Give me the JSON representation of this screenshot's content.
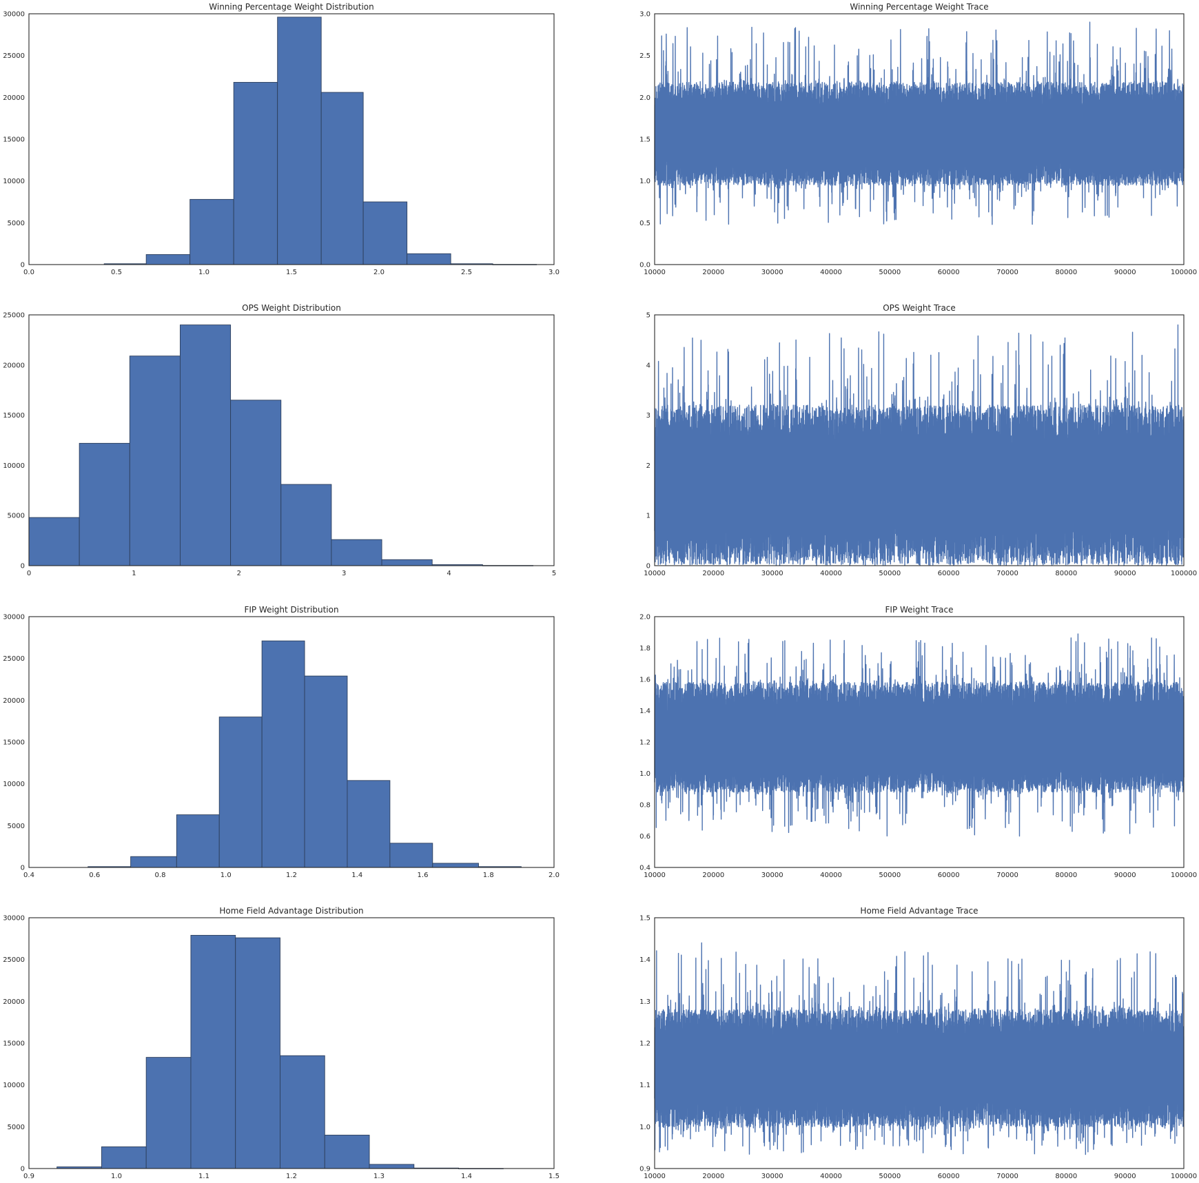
{
  "figure": {
    "background": "#ffffff",
    "bar_color": "#4c72b0",
    "bar_edge": "#2d3f5c",
    "line_color": "#4c72b0"
  },
  "chart_data": [
    {
      "type": "bar",
      "title": "Winning Percentage Weight Distribution",
      "xlim": [
        0.0,
        3.0
      ],
      "ylim": [
        0,
        30000
      ],
      "xticks": [
        0.0,
        0.5,
        1.0,
        1.5,
        2.0,
        2.5,
        3.0
      ],
      "xtick_labels": [
        "0.0",
        "0.5",
        "1.0",
        "1.5",
        "2.0",
        "2.5",
        "3.0"
      ],
      "yticks": [
        0,
        5000,
        10000,
        15000,
        20000,
        25000,
        30000
      ],
      "ytick_labels": [
        "0",
        "5000",
        "10000",
        "15000",
        "20000",
        "25000",
        "30000"
      ],
      "bin_edges": [
        0.43,
        0.67,
        0.92,
        1.17,
        1.42,
        1.67,
        1.91,
        2.16,
        2.41,
        2.65,
        2.9
      ],
      "values": [
        100,
        1200,
        7800,
        21800,
        29600,
        20600,
        7500,
        1300,
        100,
        20
      ]
    },
    {
      "type": "line",
      "title": "Winning Percentage Weight Trace",
      "xlim": [
        10000,
        100000
      ],
      "ylim": [
        0.0,
        3.0
      ],
      "xticks": [
        10000,
        20000,
        30000,
        40000,
        50000,
        60000,
        70000,
        80000,
        90000,
        100000
      ],
      "xtick_labels": [
        "10000",
        "20000",
        "30000",
        "40000",
        "50000",
        "60000",
        "70000",
        "80000",
        "90000",
        "100000"
      ],
      "yticks": [
        0.0,
        0.5,
        1.0,
        1.5,
        2.0,
        2.5,
        3.0
      ],
      "ytick_labels": [
        "0.0",
        "0.5",
        "1.0",
        "1.5",
        "2.0",
        "2.5",
        "3.0"
      ],
      "trace": {
        "mean": 1.52,
        "band": [
          0.95,
          2.18
        ],
        "low_min": 0.45,
        "high_max": 2.9,
        "spike_x": 84000
      }
    },
    {
      "type": "bar",
      "title": "OPS Weight Distribution",
      "xlim": [
        0,
        5
      ],
      "ylim": [
        0,
        25000
      ],
      "xticks": [
        0,
        1,
        2,
        3,
        4,
        5
      ],
      "xtick_labels": [
        "0",
        "1",
        "2",
        "3",
        "4",
        "5"
      ],
      "yticks": [
        0,
        5000,
        10000,
        15000,
        20000,
        25000
      ],
      "ytick_labels": [
        "0",
        "5000",
        "10000",
        "15000",
        "20000",
        "25000"
      ],
      "bin_edges": [
        0.0,
        0.48,
        0.96,
        1.44,
        1.92,
        2.4,
        2.88,
        3.36,
        3.84,
        4.32,
        4.8
      ],
      "values": [
        4800,
        12200,
        20900,
        24000,
        16500,
        8100,
        2600,
        600,
        100,
        20
      ]
    },
    {
      "type": "line",
      "title": "OPS Weight Trace",
      "xlim": [
        10000,
        100000
      ],
      "ylim": [
        0,
        5
      ],
      "xticks": [
        10000,
        20000,
        30000,
        40000,
        50000,
        60000,
        70000,
        80000,
        90000,
        100000
      ],
      "xtick_labels": [
        "10000",
        "20000",
        "30000",
        "40000",
        "50000",
        "60000",
        "70000",
        "80000",
        "90000",
        "100000"
      ],
      "yticks": [
        0,
        1,
        2,
        3,
        4,
        5
      ],
      "ytick_labels": [
        "0",
        "1",
        "2",
        "3",
        "4",
        "5"
      ],
      "trace": {
        "mean": 1.6,
        "band": [
          0.05,
          3.2
        ],
        "low_min": 0.0,
        "high_max": 4.8,
        "spike_x": 99000
      }
    },
    {
      "type": "bar",
      "title": "FIP Weight Distribution",
      "xlim": [
        0.4,
        2.0
      ],
      "ylim": [
        0,
        30000
      ],
      "xticks": [
        0.4,
        0.6,
        0.8,
        1.0,
        1.2,
        1.4,
        1.6,
        1.8,
        2.0
      ],
      "xtick_labels": [
        "0.4",
        "0.6",
        "0.8",
        "1.0",
        "1.2",
        "1.4",
        "1.6",
        "1.8",
        "2.0"
      ],
      "yticks": [
        0,
        5000,
        10000,
        15000,
        20000,
        25000,
        30000
      ],
      "ytick_labels": [
        "0",
        "5000",
        "10000",
        "15000",
        "20000",
        "25000",
        "30000"
      ],
      "bin_edges": [
        0.58,
        0.71,
        0.85,
        0.98,
        1.11,
        1.24,
        1.37,
        1.5,
        1.63,
        1.77,
        1.9
      ],
      "values": [
        100,
        1300,
        6300,
        18000,
        27100,
        22900,
        10400,
        2900,
        500,
        100
      ]
    },
    {
      "type": "line",
      "title": "FIP Weight Trace",
      "xlim": [
        10000,
        100000
      ],
      "ylim": [
        0.4,
        2.0
      ],
      "xticks": [
        10000,
        20000,
        30000,
        40000,
        50000,
        60000,
        70000,
        80000,
        90000,
        100000
      ],
      "xtick_labels": [
        "10000",
        "20000",
        "30000",
        "40000",
        "50000",
        "60000",
        "70000",
        "80000",
        "90000",
        "100000"
      ],
      "yticks": [
        0.4,
        0.6,
        0.8,
        1.0,
        1.2,
        1.4,
        1.6,
        1.8,
        2.0
      ],
      "ytick_labels": [
        "0.4",
        "0.6",
        "0.8",
        "1.0",
        "1.2",
        "1.4",
        "1.6",
        "1.8",
        "2.0"
      ],
      "trace": {
        "mean": 1.2,
        "band": [
          0.88,
          1.58
        ],
        "low_min": 0.58,
        "high_max": 1.89,
        "spike_x": 82000
      }
    },
    {
      "type": "bar",
      "title": "Home Field Advantage Distribution",
      "xlim": [
        0.9,
        1.5
      ],
      "ylim": [
        0,
        30000
      ],
      "xticks": [
        0.9,
        1.0,
        1.1,
        1.2,
        1.3,
        1.4,
        1.5
      ],
      "xtick_labels": [
        "0.9",
        "1.0",
        "1.1",
        "1.2",
        "1.3",
        "1.4",
        "1.5"
      ],
      "yticks": [
        0,
        5000,
        10000,
        15000,
        20000,
        25000,
        30000
      ],
      "ytick_labels": [
        "0",
        "5000",
        "10000",
        "15000",
        "20000",
        "25000",
        "30000"
      ],
      "bin_edges": [
        0.932,
        0.983,
        1.034,
        1.085,
        1.136,
        1.187,
        1.238,
        1.289,
        1.34,
        1.391,
        1.442
      ],
      "values": [
        200,
        2600,
        13300,
        27900,
        27600,
        13500,
        4000,
        500,
        60,
        10
      ]
    },
    {
      "type": "line",
      "title": "Home Field Advantage Trace",
      "xlim": [
        10000,
        100000
      ],
      "ylim": [
        0.9,
        1.5
      ],
      "xticks": [
        10000,
        20000,
        30000,
        40000,
        50000,
        60000,
        70000,
        80000,
        90000,
        100000
      ],
      "xtick_labels": [
        "10000",
        "20000",
        "30000",
        "40000",
        "50000",
        "60000",
        "70000",
        "80000",
        "90000",
        "100000"
      ],
      "yticks": [
        0.9,
        1.0,
        1.1,
        1.2,
        1.3,
        1.4,
        1.5
      ],
      "ytick_labels": [
        "0.9",
        "1.0",
        "1.1",
        "1.2",
        "1.3",
        "1.4",
        "1.5"
      ],
      "trace": {
        "mean": 1.14,
        "band": [
          1.0,
          1.28
        ],
        "low_min": 0.93,
        "high_max": 1.44,
        "spike_x": 18000
      }
    }
  ]
}
